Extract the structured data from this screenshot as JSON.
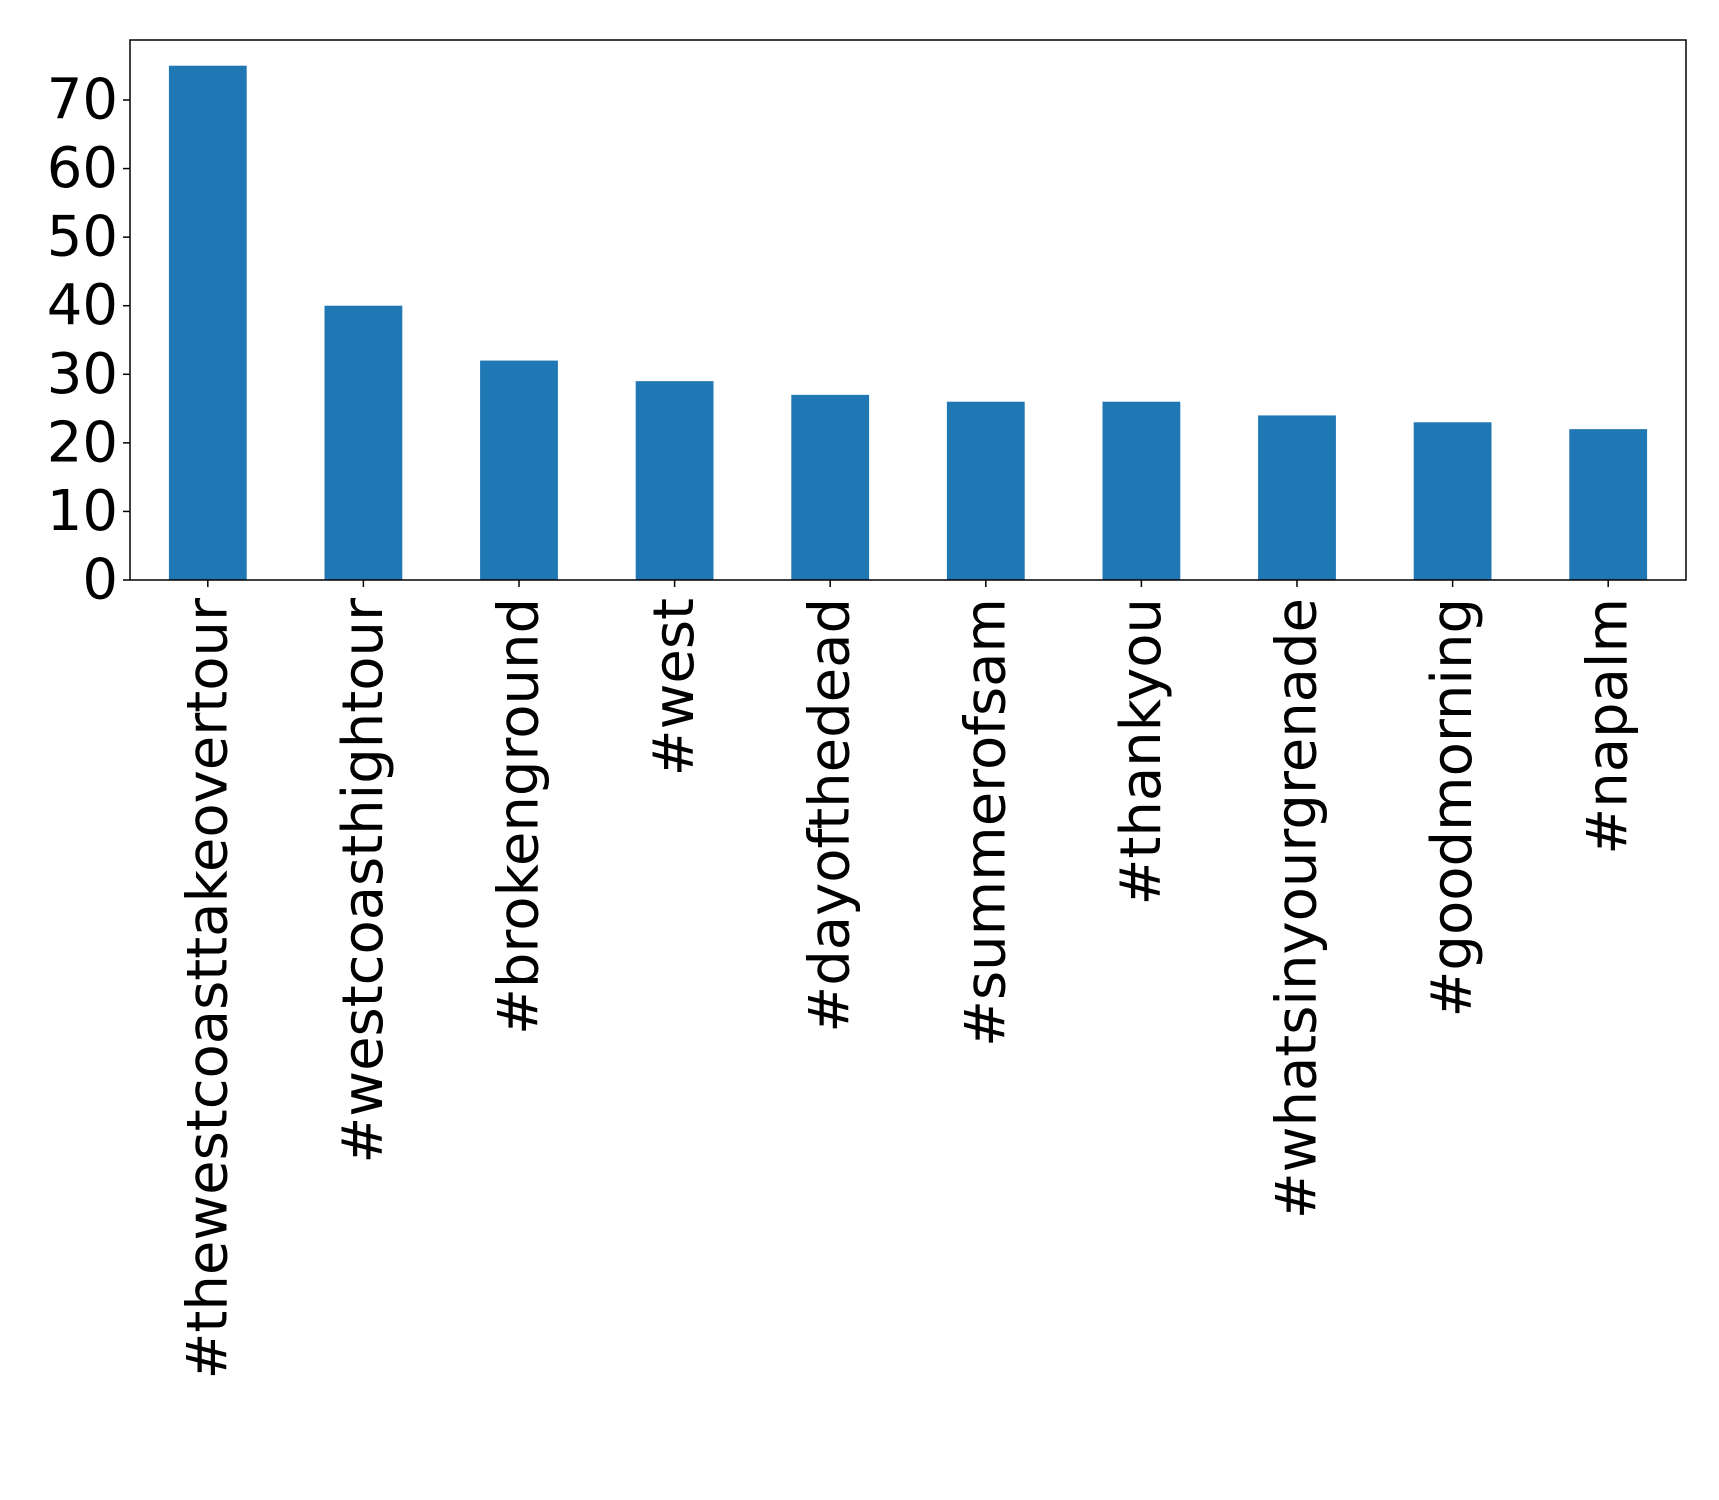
{
  "chart_data": {
    "type": "bar",
    "title": "",
    "xlabel": "",
    "ylabel": "",
    "categories": [
      "#thewestcoasttakeovertour",
      "#westcoasthightour",
      "#brokenground",
      "#west",
      "#dayofthedead",
      "#summerofsam",
      "#thankyou",
      "#whatsinyourgrenade",
      "#goodmorning",
      "#napalm"
    ],
    "values": [
      75,
      40,
      32,
      29,
      27,
      26,
      26,
      24,
      23,
      22
    ],
    "ylim": [
      0,
      78.75
    ],
    "yticks": [
      0,
      10,
      20,
      30,
      40,
      50,
      60,
      70
    ],
    "bar_color": "#1f77b4",
    "grid": false,
    "legend": "none"
  }
}
